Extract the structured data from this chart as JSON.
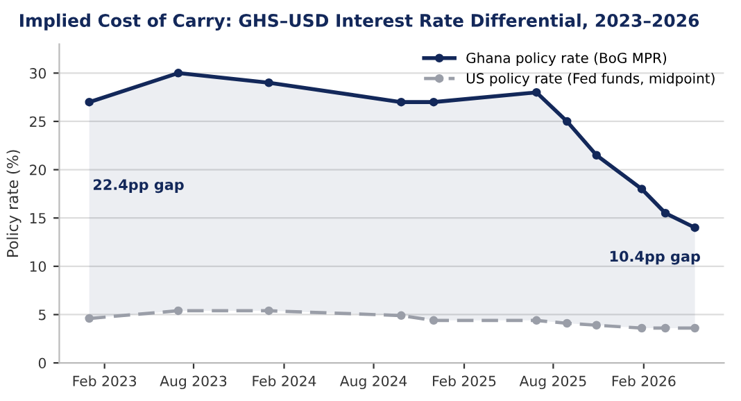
{
  "chart_data": {
    "type": "line",
    "title": "Implied Cost of Carry: GHS–USD Interest Rate Differential, 2023–2026",
    "ylabel": "Policy rate (%)",
    "x": [
      "2023-01-01",
      "2023-07-01",
      "2024-01-01",
      "2024-09-26",
      "2024-12-01",
      "2025-06-28",
      "2025-08-29",
      "2025-10-28",
      "2026-01-28",
      "2026-03-17",
      "2026-05-16"
    ],
    "series": [
      {
        "name": "Ghana policy rate (BoG MPR)",
        "color": "#13285a",
        "values": [
          27,
          30,
          29,
          27,
          27,
          28,
          25,
          21.5,
          18,
          15.5,
          14
        ],
        "line_style": "solid",
        "lower": [
          4.6,
          5.4,
          5.4,
          4.9,
          4.4,
          4.4,
          4.1,
          3.9,
          3.6,
          3.6,
          3.6
        ],
        "upper": [
          27,
          30,
          29,
          27,
          27,
          28,
          25,
          21.5,
          18,
          15.5,
          14
        ]
      },
      {
        "name": "US policy rate (Fed funds, midpoint)",
        "color": "#9a9ea8",
        "values": [
          4.6,
          5.4,
          5.4,
          4.9,
          4.4,
          4.4,
          4.1,
          3.9,
          3.6,
          3.6,
          3.6
        ],
        "line_style": "dashed"
      }
    ],
    "annotations": [
      "22.4pp gap",
      "10.4pp gap"
    ],
    "xlim": [
      "2022-11-01",
      "2026-07-14"
    ],
    "xticks": [
      {
        "value": "2023-02-01",
        "label": "Feb 2023"
      },
      {
        "value": "2023-08-01",
        "label": "Aug 2023"
      },
      {
        "value": "2024-02-01",
        "label": "Feb 2024"
      },
      {
        "value": "2024-08-01",
        "label": "Aug 2024"
      },
      {
        "value": "2025-02-01",
        "label": "Feb 2025"
      },
      {
        "value": "2025-08-01",
        "label": "Aug 2025"
      },
      {
        "value": "2026-02-01",
        "label": "Feb 2026"
      }
    ],
    "ylim": [
      0,
      33
    ],
    "yticks": [
      0,
      5,
      10,
      15,
      20,
      25,
      30
    ],
    "grid": "y",
    "legend": "top right",
    "marker": "circle"
  }
}
